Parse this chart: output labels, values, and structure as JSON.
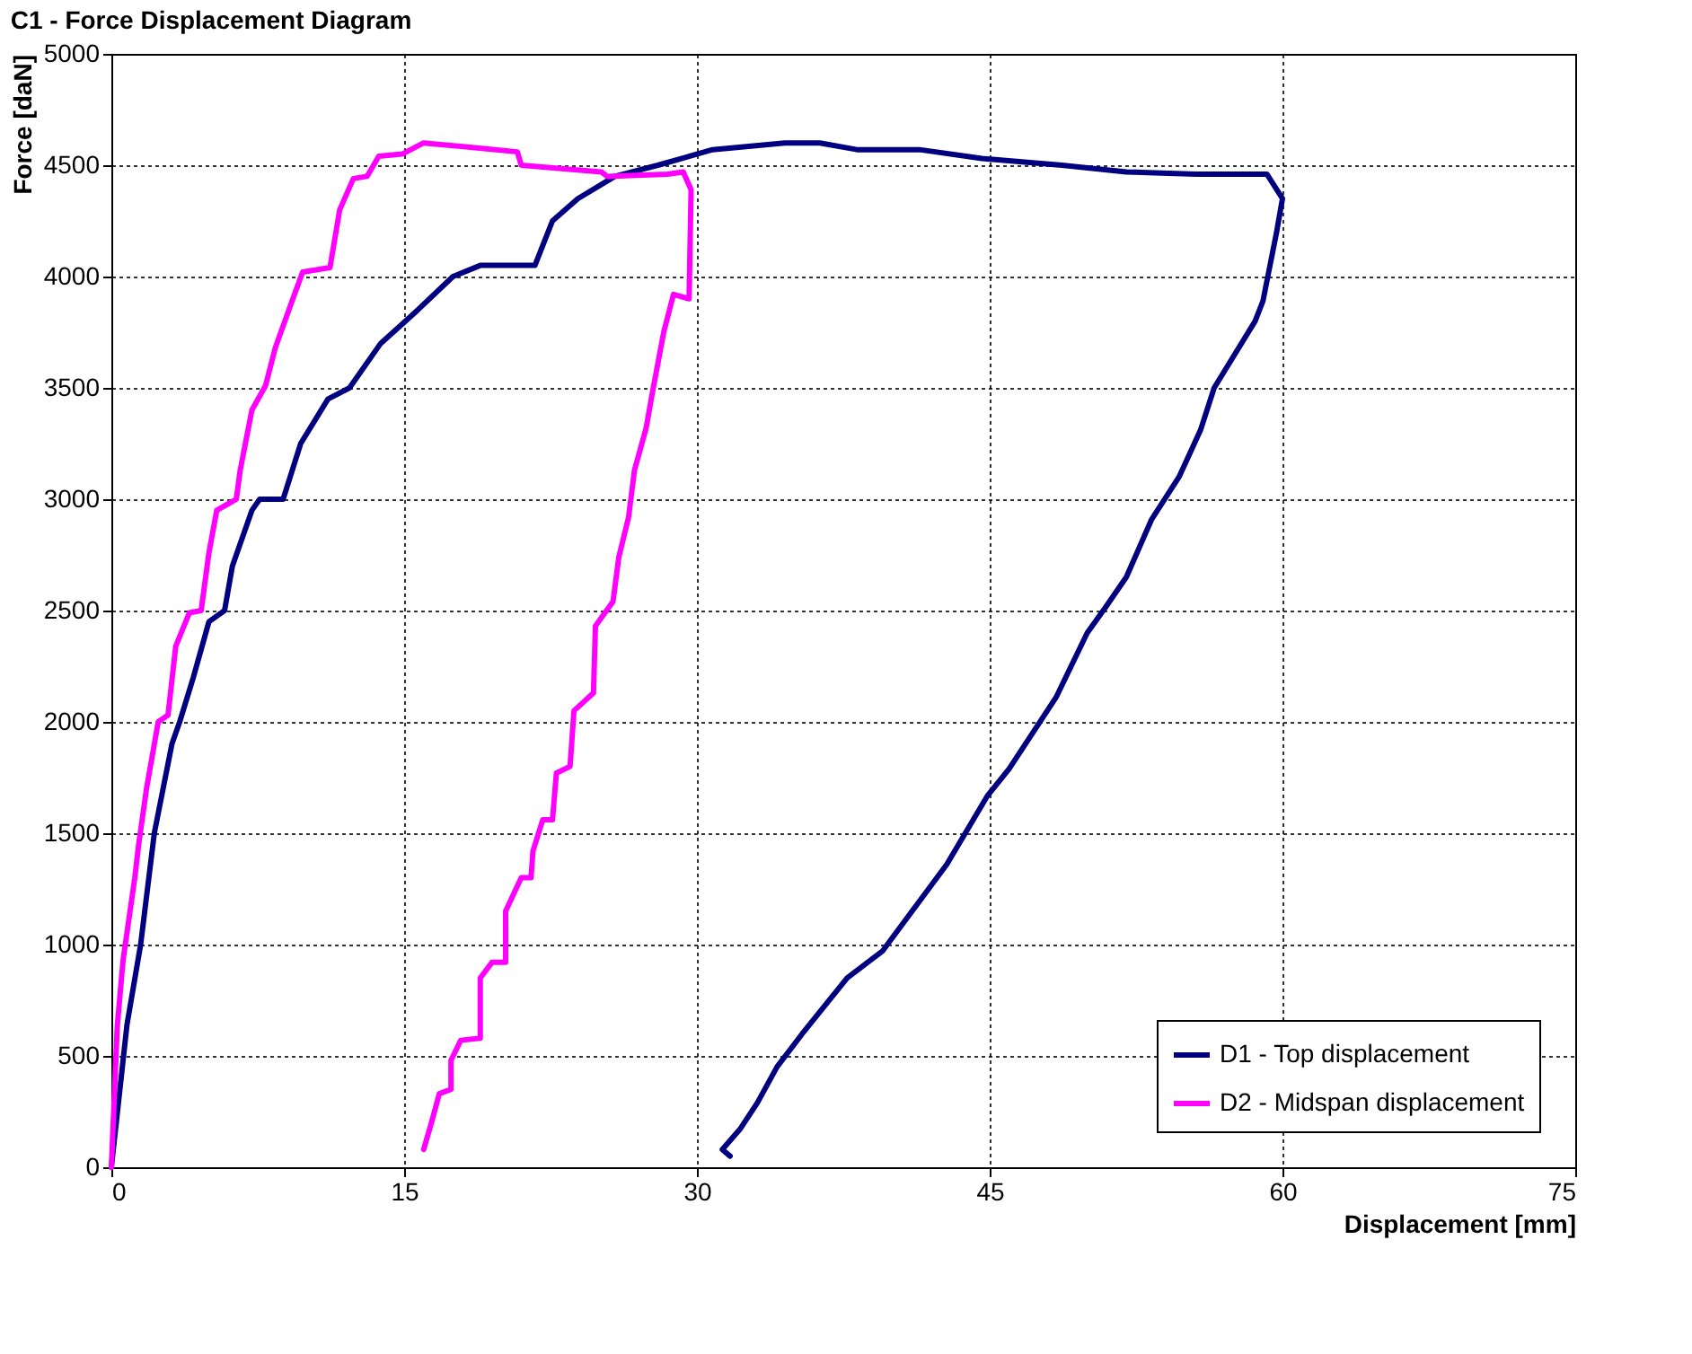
{
  "chart_data": {
    "type": "line",
    "title": "C1 - Force Displacement Diagram",
    "xlabel": "Displacement [mm]",
    "ylabel": "Force [daN]",
    "xlim": [
      0,
      75
    ],
    "xticks": [
      0,
      15,
      30,
      45,
      60,
      75
    ],
    "ylim": [
      0,
      5000
    ],
    "yticks": [
      0,
      500,
      1000,
      1500,
      2000,
      2500,
      3000,
      3500,
      4000,
      4500,
      5000
    ],
    "grid": true,
    "legend": "bottom right",
    "marker": "none",
    "line_style": "solid",
    "series": [
      {
        "name": "D1 - Top displacement",
        "color": "#000080",
        "x": [
          0,
          0.5,
          0.8,
          1.5,
          2.2,
          3.1,
          3.5,
          4.2,
          5,
          5.8,
          6.2,
          7.2,
          7.6,
          8.8,
          9.7,
          11.1,
          12.2,
          13.8,
          15.7,
          17.5,
          18.9,
          21.7,
          22.6,
          23.9,
          25.8,
          28,
          30.8,
          34.5,
          36.3,
          38.2,
          41.4,
          44.6,
          48.7,
          52,
          55.6,
          57.5,
          59.2,
          60,
          59.7,
          59,
          58.6,
          56.5,
          55.8,
          54.7,
          53.3,
          52,
          50.9,
          50,
          48.4,
          46,
          44.9,
          42.8,
          39.5,
          37.7,
          35.4,
          34.1,
          33.1,
          32.2,
          31.3,
          31.7
        ],
        "values": [
          0,
          400,
          640,
          1000,
          1500,
          1900,
          2000,
          2200,
          2450,
          2500,
          2700,
          2950,
          3000,
          3000,
          3250,
          3450,
          3500,
          3700,
          3850,
          4000,
          4050,
          4050,
          4250,
          4350,
          4450,
          4500,
          4570,
          4600,
          4600,
          4570,
          4570,
          4530,
          4500,
          4470,
          4460,
          4460,
          4460,
          4350,
          4200,
          3890,
          3800,
          3500,
          3310,
          3100,
          2910,
          2650,
          2510,
          2400,
          2110,
          1790,
          1670,
          1360,
          970,
          850,
          600,
          450,
          290,
          170,
          80,
          50
        ]
      },
      {
        "name": "D2 - Midspan displacement",
        "color": "#ff00ff",
        "x": [
          0,
          0.3,
          0.6,
          1.2,
          1.4,
          1.8,
          2.4,
          2.9,
          3.3,
          4,
          4.6,
          5,
          5.4,
          6.4,
          6.6,
          7.2,
          7.9,
          8.4,
          9.3,
          9.8,
          11.2,
          11.7,
          12.4,
          13.1,
          13.7,
          14.9,
          16,
          18.5,
          20.8,
          21,
          25.1,
          25.4,
          28.5,
          29.3,
          29.7,
          29.6,
          28.8,
          28.3,
          27.7,
          27.4,
          26.8,
          26.5,
          26,
          25.7,
          24.8,
          24.7,
          23.7,
          23.5,
          22.8,
          22.6,
          22.1,
          21.6,
          21.5,
          21,
          20.2,
          20.2,
          19.5,
          18.9,
          18.9,
          17.9,
          17.4,
          17.4,
          16.8,
          16.4,
          16
        ],
        "values": [
          0,
          630,
          930,
          1300,
          1450,
          1700,
          2000,
          2030,
          2340,
          2490,
          2500,
          2760,
          2950,
          3000,
          3130,
          3400,
          3510,
          3680,
          3900,
          4020,
          4040,
          4300,
          4440,
          4450,
          4540,
          4550,
          4600,
          4580,
          4560,
          4500,
          4470,
          4450,
          4460,
          4470,
          4390,
          3900,
          3920,
          3750,
          3470,
          3320,
          3130,
          2920,
          2740,
          2540,
          2430,
          2130,
          2050,
          1800,
          1770,
          1560,
          1560,
          1420,
          1300,
          1300,
          1150,
          920,
          920,
          850,
          580,
          570,
          480,
          350,
          330,
          200,
          80
        ]
      }
    ]
  }
}
